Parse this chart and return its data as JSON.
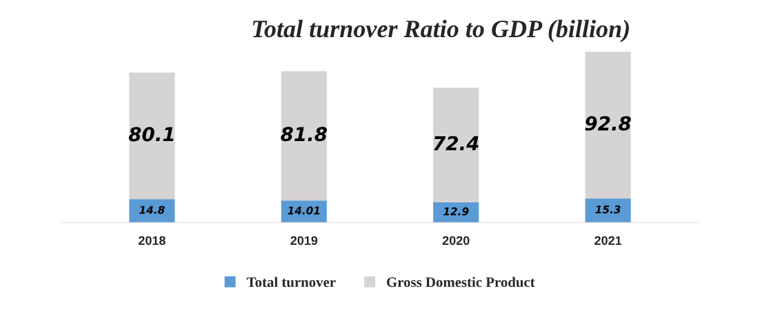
{
  "chart_data": {
    "type": "bar",
    "title": "Total turnover Ratio to GDP (billion)",
    "stacked": true,
    "data_labels": true,
    "legend": "bottom",
    "grid": false,
    "categories": [
      "2018",
      "2019",
      "2020",
      "2021"
    ],
    "series": [
      {
        "name": "Total turnover",
        "color": "#5b9bd5",
        "values": [
          14.8,
          14.01,
          12.9,
          15.3
        ]
      },
      {
        "name": "Gross Domestic Product",
        "color": "#d6d3d3",
        "values": [
          80.1,
          81.8,
          72.4,
          92.8
        ]
      }
    ]
  }
}
